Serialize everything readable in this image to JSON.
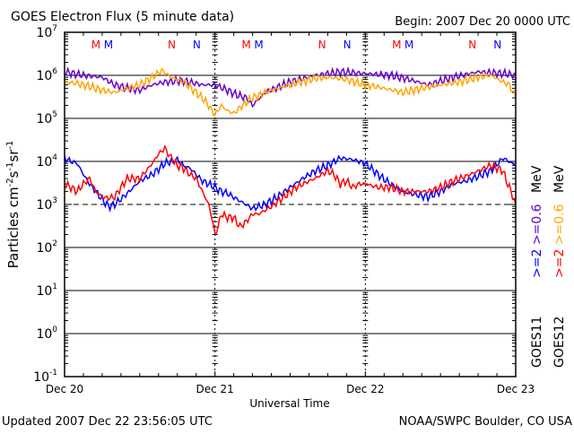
{
  "chart_data": {
    "type": "line",
    "title": "GOES Electron Flux (5 minute data)",
    "begin": "Begin: 2007 Dec 20 0000 UTC",
    "xlabel": "Universal Time",
    "ylabel": "Particles cm-2s-1sr-1",
    "ylabel_parts": [
      "Particles cm",
      "-2",
      "s",
      "-1",
      "sr",
      "-1"
    ],
    "yscale": "log",
    "ylim": [
      0.1,
      10000000
    ],
    "xlim_hours": [
      0,
      72
    ],
    "x_ticks": [
      {
        "hour": 0,
        "label": "Dec 20"
      },
      {
        "hour": 24,
        "label": "Dec 21"
      },
      {
        "hour": 48,
        "label": "Dec 22"
      },
      {
        "hour": 72,
        "label": "Dec 23"
      }
    ],
    "y_ticks": [
      {
        "exp": 7
      },
      {
        "exp": 6
      },
      {
        "exp": 5
      },
      {
        "exp": 4
      },
      {
        "exp": 3
      },
      {
        "exp": 2
      },
      {
        "exp": 1
      },
      {
        "exp": 0
      },
      {
        "exp": -1
      }
    ],
    "y_tick_base": "10",
    "threshold_line": 1000,
    "markers": [
      {
        "hour": 5.0,
        "label": "M",
        "color": "#ff0000"
      },
      {
        "hour": 7.0,
        "label": "M",
        "color": "#0000ff"
      },
      {
        "hour": 17.1,
        "label": "N",
        "color": "#ff0000"
      },
      {
        "hour": 21.1,
        "label": "N",
        "color": "#0000ff"
      },
      {
        "hour": 29.0,
        "label": "M",
        "color": "#ff0000"
      },
      {
        "hour": 31.0,
        "label": "M",
        "color": "#0000ff"
      },
      {
        "hour": 41.1,
        "label": "N",
        "color": "#ff0000"
      },
      {
        "hour": 45.1,
        "label": "N",
        "color": "#0000ff"
      },
      {
        "hour": 53.0,
        "label": "M",
        "color": "#ff0000"
      },
      {
        "hour": 55.0,
        "label": "M",
        "color": "#0000ff"
      },
      {
        "hour": 65.1,
        "label": "N",
        "color": "#ff0000"
      },
      {
        "hour": 69.1,
        "label": "N",
        "color": "#0000ff"
      }
    ],
    "series": [
      {
        "name": "GOES11 >=0.6 MeV",
        "color": "#6600cc",
        "hours": [
          0,
          3,
          6,
          8,
          10,
          12,
          14,
          16,
          19,
          22,
          24,
          26,
          27.5,
          29,
          30,
          32,
          36,
          40,
          44,
          48,
          52,
          55,
          58,
          62,
          66,
          70,
          72
        ],
        "values": [
          1200000,
          1000000,
          900000,
          600000,
          500000,
          450000,
          600000,
          700000,
          750000,
          600000,
          600000,
          450000,
          350000,
          300000,
          200000,
          400000,
          700000,
          1000000,
          1200000,
          1100000,
          1000000,
          800000,
          600000,
          900000,
          1200000,
          1100000,
          1000000
        ]
      },
      {
        "name": "GOES12 >=0.6 MeV",
        "color": "#ffa500",
        "hours": [
          0,
          2,
          4,
          6,
          8,
          10,
          12,
          14,
          15.5,
          17,
          19,
          21,
          22.5,
          24,
          25,
          26,
          27,
          28,
          30,
          33,
          36,
          40,
          42,
          45,
          48,
          51,
          54,
          57,
          60,
          63,
          66,
          68,
          70,
          71,
          72
        ],
        "values": [
          700000,
          650000,
          550000,
          450000,
          400000,
          500000,
          600000,
          900000,
          1300000,
          900000,
          700000,
          400000,
          250000,
          120000,
          200000,
          150000,
          130000,
          180000,
          300000,
          450000,
          600000,
          850000,
          900000,
          800000,
          600000,
          500000,
          400000,
          500000,
          600000,
          700000,
          900000,
          1000000,
          700000,
          600000,
          300000
        ]
      },
      {
        "name": "GOES11 >=2 MeV",
        "color": "#0000ff",
        "hours": [
          0,
          1,
          2,
          3,
          4,
          5,
          6,
          7,
          8,
          10,
          12,
          14,
          16,
          18,
          19,
          20,
          21,
          22,
          23,
          24,
          25,
          26,
          28,
          30,
          32,
          34,
          36,
          38,
          40,
          42,
          44,
          46,
          48,
          50,
          52,
          54,
          56,
          58,
          60,
          62,
          64,
          66,
          68,
          70,
          72
        ],
        "values": [
          12000,
          10000,
          9000,
          5000,
          3000,
          2000,
          1300,
          900,
          1000,
          1800,
          3500,
          5000,
          9000,
          11000,
          8000,
          7000,
          5000,
          3500,
          3000,
          2500,
          2000,
          1800,
          1200,
          800,
          1000,
          1500,
          2500,
          4000,
          6000,
          8000,
          12000,
          11000,
          9000,
          5000,
          3000,
          2000,
          1700,
          1500,
          2000,
          3000,
          3500,
          4500,
          6000,
          12000,
          8000
        ]
      },
      {
        "name": "GOES12 >=2 MeV",
        "color": "#ff0000",
        "hours": [
          0,
          1,
          2,
          3,
          4,
          5,
          6,
          7,
          8,
          9,
          10,
          12,
          13,
          14,
          15,
          16,
          17,
          18,
          19,
          20,
          21,
          22,
          23,
          23.5,
          24,
          24.5,
          25,
          26,
          27,
          28,
          29,
          30,
          31,
          33,
          35,
          37,
          39,
          40,
          41,
          42,
          43,
          44,
          45,
          46,
          47,
          48,
          50,
          52,
          54,
          56,
          58,
          60,
          62,
          64,
          66,
          67,
          68,
          69,
          70,
          70.5,
          71,
          72
        ],
        "values": [
          3000,
          2500,
          2000,
          3000,
          4000,
          2000,
          1500,
          1400,
          1500,
          2500,
          4000,
          4000,
          6000,
          9000,
          15000,
          20000,
          12000,
          8000,
          7000,
          5000,
          4000,
          2000,
          1000,
          500,
          200,
          300,
          600,
          500,
          500,
          300,
          400,
          600,
          600,
          900,
          1500,
          2500,
          3500,
          4000,
          5000,
          6000,
          5000,
          3000,
          3500,
          2500,
          3000,
          3000,
          2500,
          2500,
          2000,
          2000,
          2000,
          2500,
          3500,
          4500,
          6000,
          7000,
          8000,
          7000,
          6000,
          3500,
          2500,
          1000
        ]
      }
    ],
    "legend": {
      "placement": "right",
      "columns": [
        {
          "label": "GOES11",
          "items": [
            {
              "text": ">=2",
              "color": "#0000ff"
            },
            {
              "text": ">=0.6",
              "color": "#6600cc"
            },
            {
              "text": "MeV",
              "color": "#000000"
            }
          ]
        },
        {
          "label": "GOES12",
          "items": [
            {
              "text": ">=2",
              "color": "#ff0000"
            },
            {
              "text": ">=0.6",
              "color": "#ffa500"
            },
            {
              "text": "MeV",
              "color": "#000000"
            }
          ]
        }
      ]
    }
  },
  "footer": {
    "updated": "Updated 2007 Dec 22 23:56:05 UTC",
    "credit": "NOAA/SWPC Boulder, CO USA"
  }
}
